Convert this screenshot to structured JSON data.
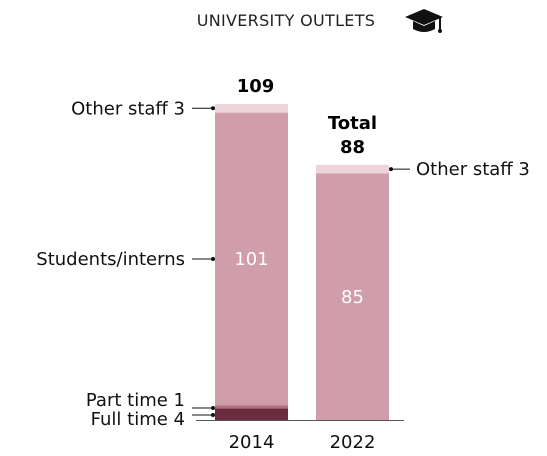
{
  "header": {
    "title": "UNIVERSITY OUTLETS",
    "icon": "graduation-cap-icon"
  },
  "chart_data": {
    "type": "bar",
    "stacked": true,
    "title": "UNIVERSITY OUTLETS",
    "xlabel": "",
    "ylabel": "",
    "categories": [
      "2014",
      "2022"
    ],
    "series": [
      {
        "name": "Full time",
        "values": [
          4,
          0
        ],
        "color": "#6b2c3f"
      },
      {
        "name": "Part time",
        "values": [
          1,
          0
        ],
        "color": "#b0707f"
      },
      {
        "name": "Students/interns",
        "values": [
          101,
          85
        ],
        "color": "#d09eab"
      },
      {
        "name": "Other staff",
        "values": [
          3,
          3
        ],
        "color": "#ecd4da"
      }
    ],
    "totals": [
      "109",
      "88"
    ],
    "total_label": "Total",
    "bar_value_labels": [
      "101",
      "85"
    ],
    "annotations_2014": [
      {
        "label": "Other staff 3",
        "series": "Other staff"
      },
      {
        "label": "Students/interns",
        "series": "Students/interns"
      },
      {
        "label": "Part time 1",
        "series": "Part time"
      },
      {
        "label": "Full time 4",
        "series": "Full time"
      }
    ],
    "annotations_2022": [
      {
        "label": "Other staff 3",
        "series": "Other staff"
      }
    ],
    "ylim": [
      0,
      109
    ],
    "grid": false,
    "legend": "none"
  }
}
